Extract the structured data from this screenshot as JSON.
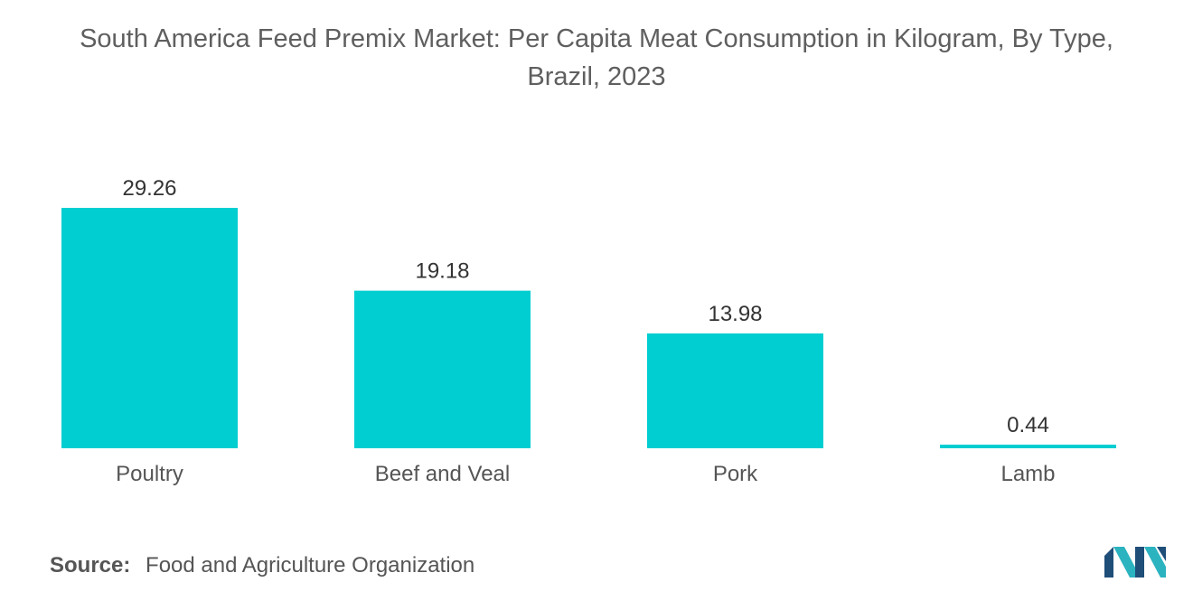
{
  "title_line1": "South America Feed Premix Market: Per Capita Meat Consumption in Kilogram, By Type,",
  "title_line2": "Brazil, 2023",
  "source": {
    "label": "Source:",
    "text": "Food and Agriculture Organization"
  },
  "colors": {
    "bar": "#00CED1",
    "text": "#555555",
    "logo_dark": "#1f4e79",
    "logo_light": "#2bb3c0"
  },
  "logo_icon": "mordor-intelligence-logo-icon",
  "chart_data": {
    "type": "bar",
    "categories": [
      "Poultry",
      "Beef and Veal",
      "Pork",
      "Lamb"
    ],
    "values": [
      29.26,
      19.18,
      13.98,
      0.44
    ],
    "value_labels": [
      "29.26",
      "19.18",
      "13.98",
      "0.44"
    ],
    "title": "South America Feed Premix Market: Per Capita Meat Consumption in Kilogram, By Type, Brazil, 2023",
    "xlabel": "",
    "ylabel": "",
    "ylim": [
      0,
      29.26
    ],
    "grid": false,
    "legend": "none"
  }
}
